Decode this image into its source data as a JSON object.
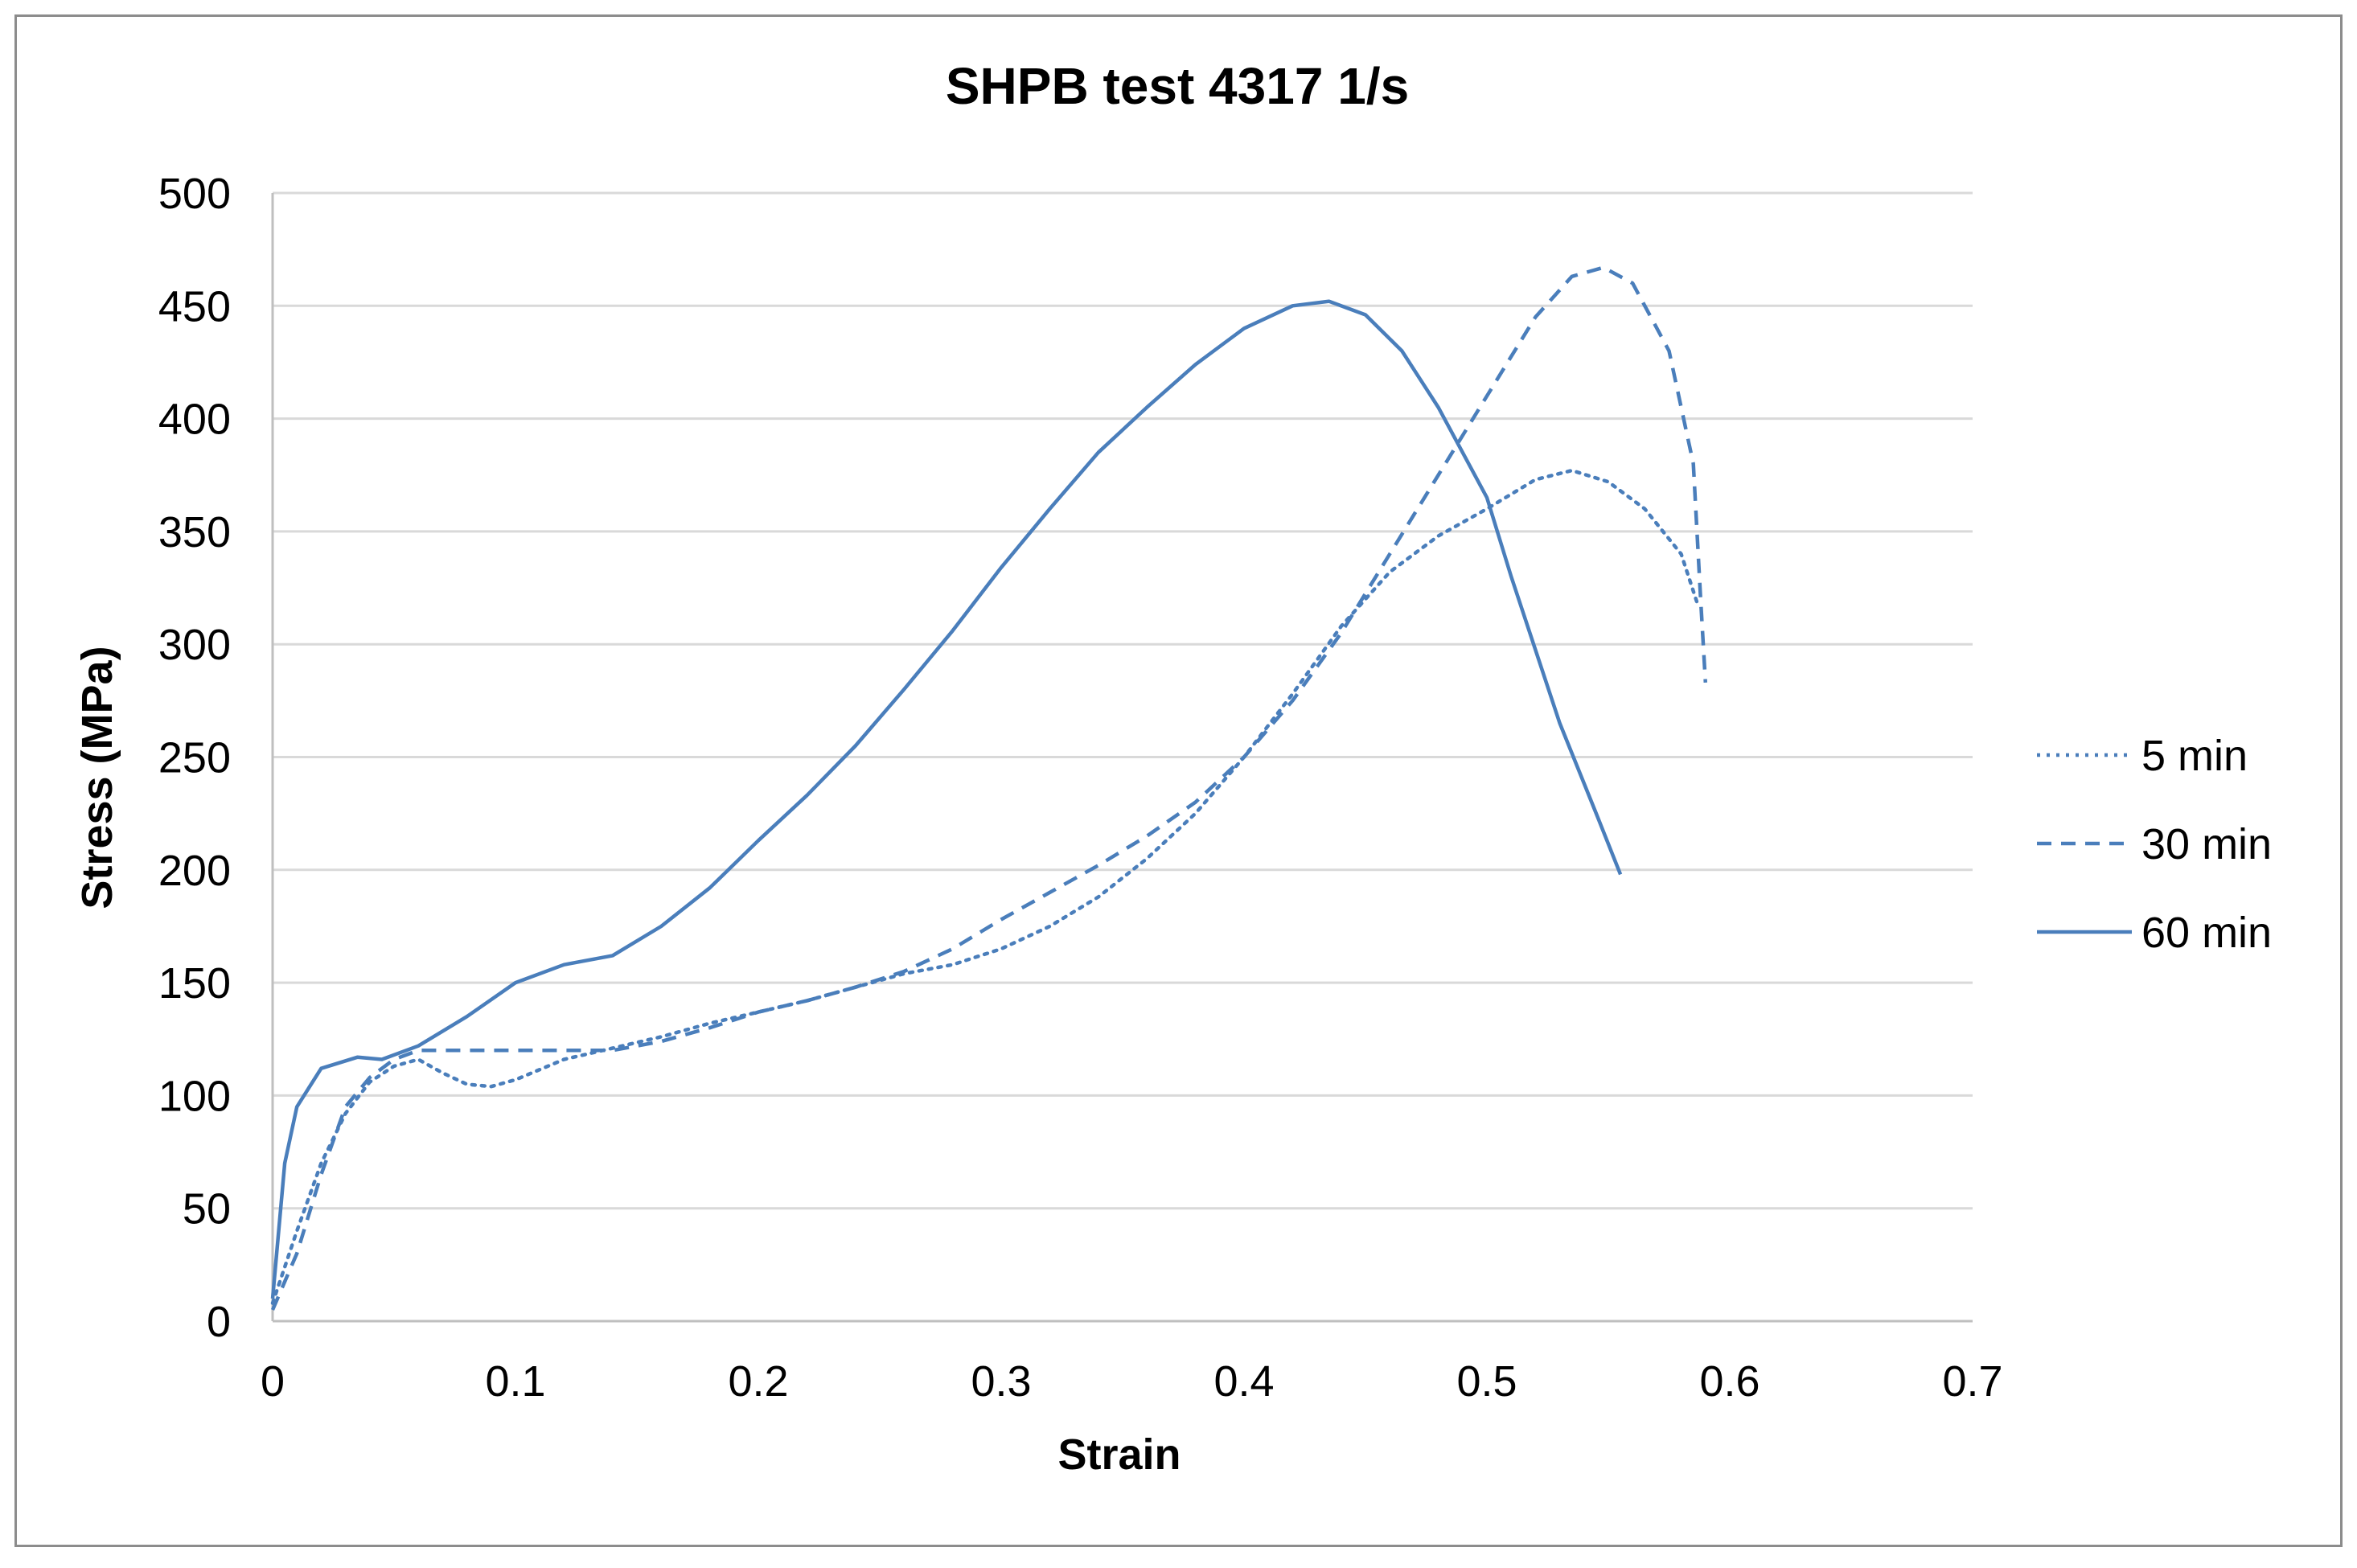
{
  "chart_data": {
    "type": "line",
    "title": "SHPB test 4317 1/s",
    "xlabel": "Strain",
    "ylabel": "Stress (MPa)",
    "xlim": [
      0,
      0.7
    ],
    "ylim": [
      0,
      500
    ],
    "xticks": [
      "0",
      "0.1",
      "0.2",
      "0.3",
      "0.4",
      "0.5",
      "0.6",
      "0.7"
    ],
    "yticks": [
      "0",
      "50",
      "100",
      "150",
      "200",
      "250",
      "300",
      "350",
      "400",
      "450",
      "500"
    ],
    "grid": "horizontal",
    "legend_position": "right",
    "line_color": "#4a7ebb",
    "series": [
      {
        "name": "5 min",
        "dash": "dotted",
        "points": [
          [
            0.0,
            8
          ],
          [
            0.01,
            40
          ],
          [
            0.02,
            70
          ],
          [
            0.03,
            92
          ],
          [
            0.04,
            106
          ],
          [
            0.05,
            113
          ],
          [
            0.06,
            116
          ],
          [
            0.07,
            110
          ],
          [
            0.08,
            105
          ],
          [
            0.09,
            104
          ],
          [
            0.1,
            107
          ],
          [
            0.12,
            116
          ],
          [
            0.14,
            121
          ],
          [
            0.16,
            126
          ],
          [
            0.18,
            132
          ],
          [
            0.2,
            137
          ],
          [
            0.22,
            142
          ],
          [
            0.24,
            148
          ],
          [
            0.26,
            154
          ],
          [
            0.28,
            158
          ],
          [
            0.3,
            165
          ],
          [
            0.32,
            175
          ],
          [
            0.34,
            188
          ],
          [
            0.36,
            205
          ],
          [
            0.38,
            225
          ],
          [
            0.4,
            250
          ],
          [
            0.42,
            278
          ],
          [
            0.44,
            308
          ],
          [
            0.46,
            332
          ],
          [
            0.48,
            348
          ],
          [
            0.5,
            360
          ],
          [
            0.52,
            373
          ],
          [
            0.535,
            377
          ],
          [
            0.55,
            372
          ],
          [
            0.565,
            360
          ],
          [
            0.58,
            340
          ],
          [
            0.587,
            317
          ]
        ]
      },
      {
        "name": "30 min",
        "dash": "dashed",
        "points": [
          [
            0.0,
            5
          ],
          [
            0.01,
            30
          ],
          [
            0.02,
            65
          ],
          [
            0.03,
            95
          ],
          [
            0.04,
            108
          ],
          [
            0.05,
            116
          ],
          [
            0.06,
            120
          ],
          [
            0.08,
            120
          ],
          [
            0.1,
            120
          ],
          [
            0.12,
            120
          ],
          [
            0.14,
            120
          ],
          [
            0.16,
            124
          ],
          [
            0.18,
            130
          ],
          [
            0.2,
            137
          ],
          [
            0.22,
            142
          ],
          [
            0.24,
            148
          ],
          [
            0.26,
            155
          ],
          [
            0.28,
            165
          ],
          [
            0.3,
            178
          ],
          [
            0.32,
            190
          ],
          [
            0.34,
            202
          ],
          [
            0.36,
            215
          ],
          [
            0.38,
            230
          ],
          [
            0.4,
            250
          ],
          [
            0.42,
            275
          ],
          [
            0.44,
            305
          ],
          [
            0.46,
            340
          ],
          [
            0.48,
            375
          ],
          [
            0.5,
            410
          ],
          [
            0.52,
            445
          ],
          [
            0.535,
            463
          ],
          [
            0.548,
            467
          ],
          [
            0.56,
            460
          ],
          [
            0.575,
            430
          ],
          [
            0.585,
            380
          ],
          [
            0.588,
            320
          ],
          [
            0.59,
            283
          ]
        ]
      },
      {
        "name": "60 min",
        "dash": "solid",
        "points": [
          [
            0.0,
            10
          ],
          [
            0.005,
            70
          ],
          [
            0.01,
            95
          ],
          [
            0.02,
            112
          ],
          [
            0.035,
            117
          ],
          [
            0.045,
            116
          ],
          [
            0.06,
            122
          ],
          [
            0.08,
            135
          ],
          [
            0.1,
            150
          ],
          [
            0.12,
            158
          ],
          [
            0.14,
            162
          ],
          [
            0.16,
            175
          ],
          [
            0.18,
            192
          ],
          [
            0.2,
            213
          ],
          [
            0.22,
            233
          ],
          [
            0.24,
            255
          ],
          [
            0.26,
            280
          ],
          [
            0.28,
            306
          ],
          [
            0.3,
            334
          ],
          [
            0.32,
            360
          ],
          [
            0.34,
            385
          ],
          [
            0.36,
            405
          ],
          [
            0.38,
            424
          ],
          [
            0.4,
            440
          ],
          [
            0.42,
            450
          ],
          [
            0.435,
            452
          ],
          [
            0.45,
            446
          ],
          [
            0.465,
            430
          ],
          [
            0.48,
            405
          ],
          [
            0.5,
            365
          ],
          [
            0.51,
            330
          ],
          [
            0.53,
            265
          ],
          [
            0.545,
            225
          ],
          [
            0.555,
            198
          ]
        ]
      }
    ]
  }
}
